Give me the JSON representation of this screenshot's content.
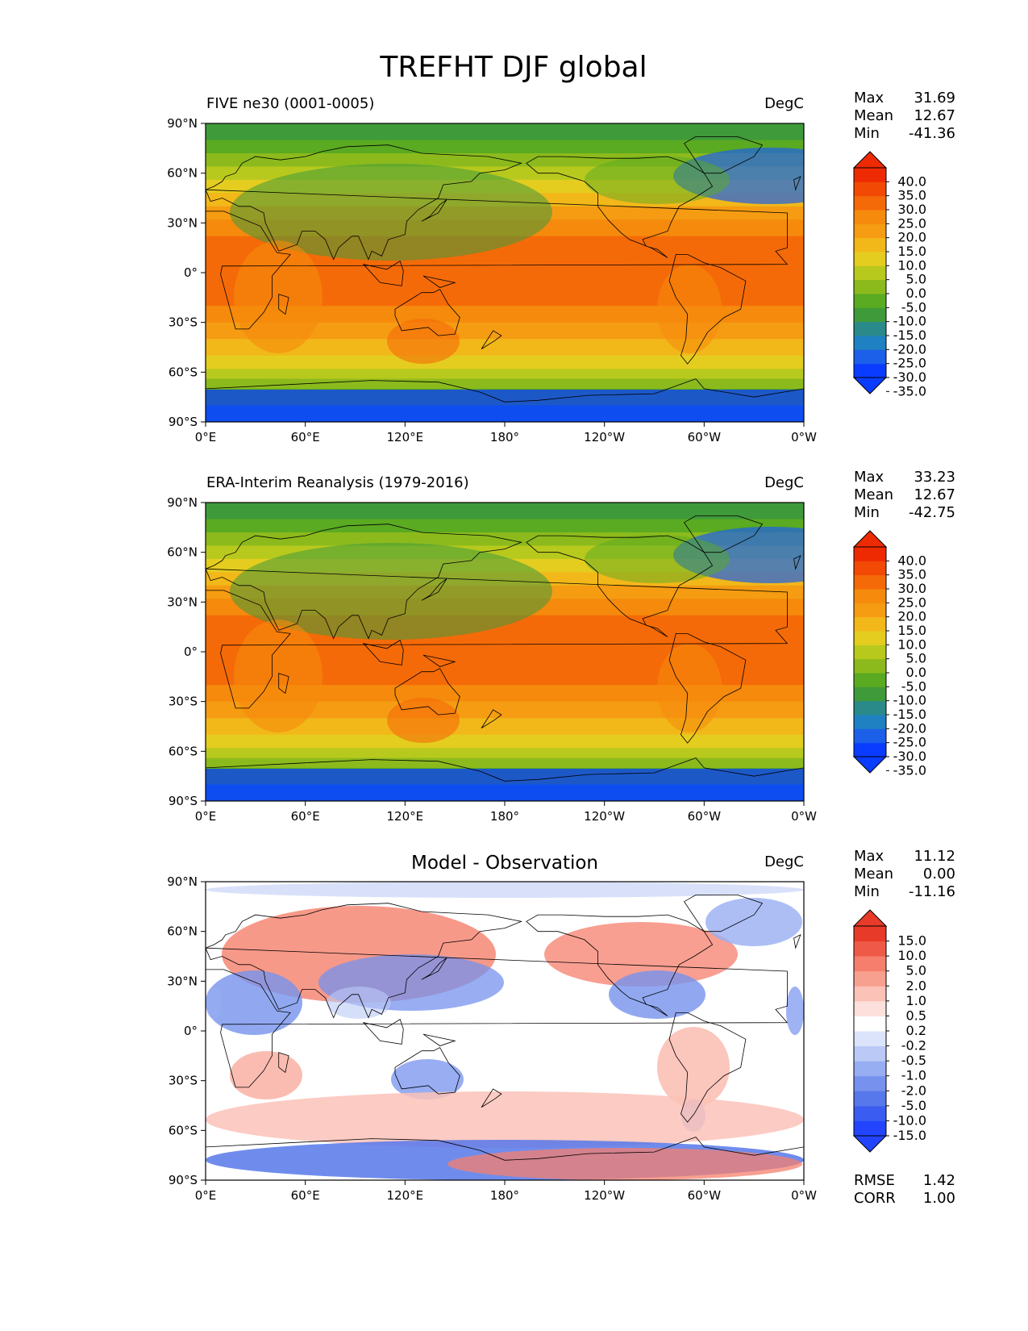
{
  "figure": {
    "title": "TREFHT DJF global"
  },
  "colors": {
    "abs_levels": [
      "#0a3cff",
      "#1c5fe8",
      "#1f80c2",
      "#2a8a8a",
      "#3f9a3a",
      "#5aaa22",
      "#8cba1c",
      "#b8c91e",
      "#e4cd1f",
      "#f2b81a",
      "#f59c12",
      "#f58a0c",
      "#f56a08",
      "#f24a05",
      "#ee2a02"
    ],
    "diff_levels": [
      "#2244ff",
      "#3a5cf0",
      "#5678ea",
      "#7692ee",
      "#98aef2",
      "#bac9f6",
      "#dbe4fb",
      "#ffffff",
      "#fde0dc",
      "#fbc2b8",
      "#f8a090",
      "#f57f6c",
      "#ef5a48",
      "#e83a28"
    ],
    "land": "#000000"
  },
  "axis": {
    "xticks": [
      "0°E",
      "60°E",
      "120°E",
      "180°",
      "120°W",
      "60°W",
      "0°W"
    ],
    "yticks": [
      "90°N",
      "60°N",
      "30°N",
      "0°",
      "30°S",
      "60°S",
      "90°S"
    ]
  },
  "chart_data": [
    {
      "type": "heatmap",
      "title_left": "FIVE ne30 (0001-0005)",
      "units": "DegC",
      "stats": [
        {
          "label": "Max",
          "value": "31.69"
        },
        {
          "label": "Mean",
          "value": "12.67"
        },
        {
          "label": "Min",
          "value": "-41.36"
        }
      ],
      "colorbar_ticks": [
        "40.0",
        "35.0",
        "30.0",
        "25.0",
        "20.0",
        "15.0",
        "10.0",
        "5.0",
        "0.0",
        "-5.0",
        "-10.0",
        "-15.0",
        "-20.0",
        "-25.0",
        "-30.0",
        "-35.0"
      ],
      "xlim": [
        0,
        360
      ],
      "ylim": [
        -90,
        90
      ]
    },
    {
      "type": "heatmap",
      "title_left": "ERA-Interim Reanalysis (1979-2016)",
      "units": "DegC",
      "stats": [
        {
          "label": "Max",
          "value": "33.23"
        },
        {
          "label": "Mean",
          "value": "12.67"
        },
        {
          "label": "Min",
          "value": "-42.75"
        }
      ],
      "colorbar_ticks": [
        "40.0",
        "35.0",
        "30.0",
        "25.0",
        "20.0",
        "15.0",
        "10.0",
        "5.0",
        "0.0",
        "-5.0",
        "-10.0",
        "-15.0",
        "-20.0",
        "-25.0",
        "-30.0",
        "-35.0"
      ],
      "xlim": [
        0,
        360
      ],
      "ylim": [
        -90,
        90
      ]
    },
    {
      "type": "heatmap",
      "title_center": "Model - Observation",
      "units": "DegC",
      "stats": [
        {
          "label": "Max",
          "value": "11.12"
        },
        {
          "label": "Mean",
          "value": "0.00"
        },
        {
          "label": "Min",
          "value": "-11.16"
        }
      ],
      "colorbar_ticks": [
        "15.0",
        "10.0",
        "5.0",
        "2.0",
        "1.0",
        "0.5",
        "0.2",
        "-0.2",
        "-0.5",
        "-1.0",
        "-2.0",
        "-5.0",
        "-10.0",
        "-15.0"
      ],
      "bottom_stats": [
        {
          "label": "RMSE",
          "value": "1.42"
        },
        {
          "label": "CORR",
          "value": "1.00"
        }
      ],
      "xlim": [
        0,
        360
      ],
      "ylim": [
        -90,
        90
      ]
    }
  ]
}
